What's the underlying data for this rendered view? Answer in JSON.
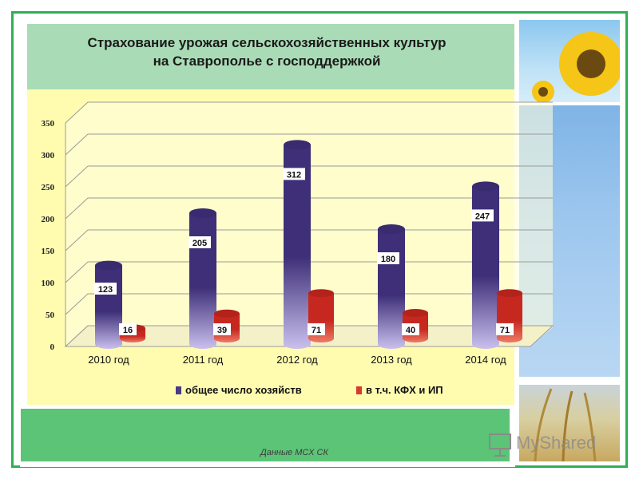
{
  "title_lines": [
    "Страхование урожая сельскохозяйственных культур",
    "на Ставрополье с господдержкой"
  ],
  "source_note": "Данные МСХ СК",
  "watermark": "MyShared",
  "colors": {
    "frame": "#2fae58",
    "title_band": "#a9dcb6",
    "chart_area": "#fffcb0",
    "footer_band": "#5cc477",
    "series_total": "#4a3b86",
    "series_kfh": "#d83a2e"
  },
  "chart_data": {
    "type": "bar",
    "title": "Страхование урожая сельскохозяйственных культур на Ставрополье с господдержкой",
    "categories": [
      "2010 год",
      "2011 год",
      "2012 год",
      "2013 год",
      "2014 год"
    ],
    "series": [
      {
        "name": "общее число хозяйств",
        "values": [
          123,
          205,
          312,
          180,
          247
        ],
        "color": "#4a3b86"
      },
      {
        "name": "в т.ч. КФХ и ИП",
        "values": [
          16,
          39,
          71,
          40,
          71
        ],
        "color": "#d83a2e"
      }
    ],
    "ylim": [
      0,
      350
    ],
    "yticks": [
      0,
      50,
      100,
      150,
      200,
      250,
      300,
      350
    ],
    "grid": true,
    "legend": "bottom",
    "xlabel": "",
    "ylabel": ""
  }
}
